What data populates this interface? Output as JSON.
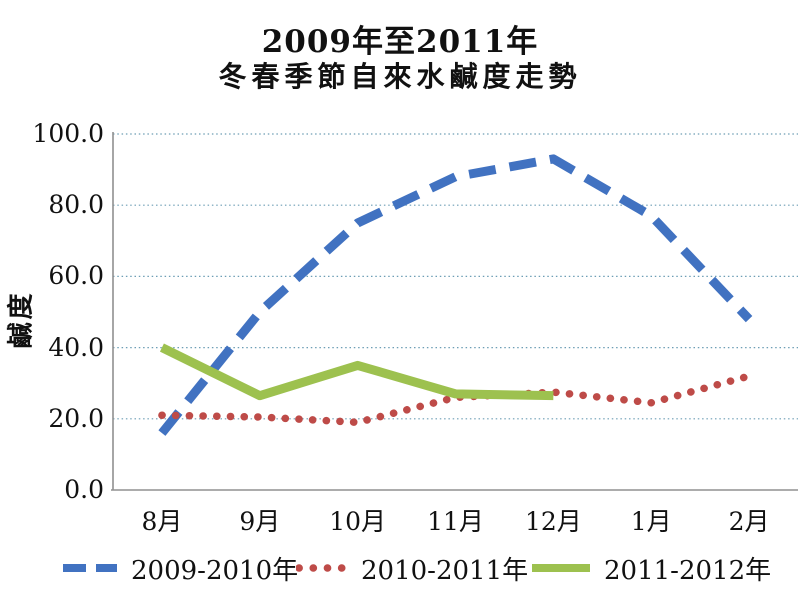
{
  "title": {
    "line1": "2009年至2011年",
    "line2": "冬春季節自來水鹹度走勢"
  },
  "chart_data": {
    "type": "line",
    "title": "2009年至2011年 冬春季節自來水鹹度走勢",
    "xlabel": "",
    "ylabel": "鹹度",
    "categories": [
      "8月",
      "9月",
      "10月",
      "11月",
      "12月",
      "1月",
      "2月"
    ],
    "ylim": [
      0,
      100
    ],
    "ytick_step": 20,
    "ytick_decimals": 1,
    "grid": "horizontal dotted lines",
    "legend_position": "bottom",
    "series": [
      {
        "name": "2009-2010年",
        "color": "#4172C1",
        "style": "dashed",
        "values": [
          16,
          50,
          75,
          88,
          93,
          77,
          48
        ]
      },
      {
        "name": "2010-2011年",
        "color": "#BE4B48",
        "style": "dotted",
        "values": [
          21,
          20.5,
          19,
          26,
          27.5,
          24.5,
          32
        ]
      },
      {
        "name": "2011-2012年",
        "color": "#9DC14F",
        "style": "solid",
        "values": [
          40,
          26.5,
          35,
          27,
          26.5,
          null,
          null
        ]
      }
    ]
  },
  "colors": {
    "background": "#FFFFFF",
    "grid": "#6D9EB5",
    "axis": "#909090",
    "text": "#111111"
  }
}
